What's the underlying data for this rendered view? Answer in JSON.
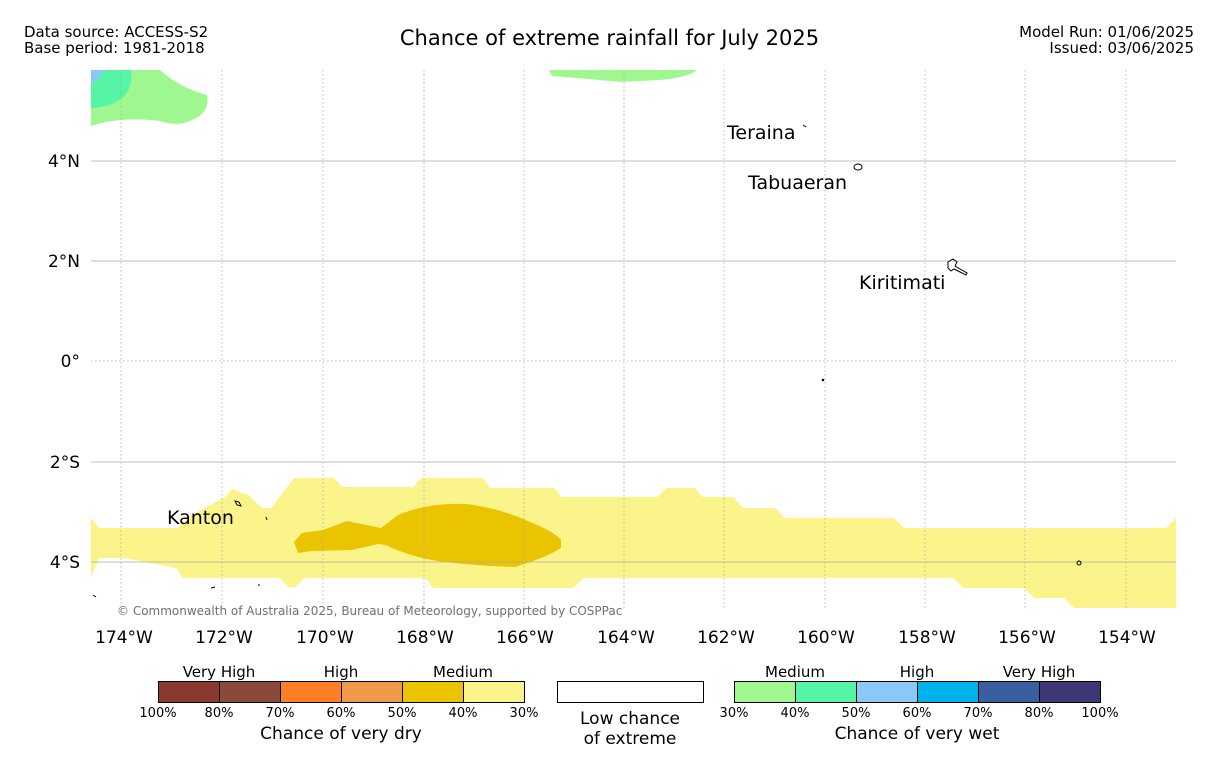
{
  "header": {
    "data_source": "Data source: ACCESS-S2",
    "base_period": "Base period: 1981-2018",
    "title": "Chance of extreme rainfall for July 2025",
    "model_run": "Model Run: 01/06/2025",
    "issued": "Issued: 03/06/2025"
  },
  "map": {
    "lon_ticks": [
      "174°W",
      "172°W",
      "170°W",
      "168°W",
      "166°W",
      "164°W",
      "162°W",
      "160°W",
      "158°W",
      "156°W",
      "154°W"
    ],
    "lat_ticks": [
      "4°N",
      "2°N",
      "0°",
      "2°S",
      "4°S"
    ],
    "places": [
      "Teraina",
      "Tabuaeran",
      "Kiritimati",
      "Kanton"
    ],
    "copyright": "© Commonwealth of Australia 2025, Bureau of Meteorology, supported by COSPPac"
  },
  "legend": {
    "dry": {
      "headings": [
        "Very High",
        "High",
        "Medium"
      ],
      "ticks": [
        "100%",
        "80%",
        "70%",
        "60%",
        "50%",
        "40%",
        "30%"
      ],
      "title": "Chance of very dry",
      "colors": [
        "#8b3a2f",
        "#8b4a39",
        "#fe7f25",
        "#ef9a48",
        "#ebc400",
        "#fbf48b"
      ]
    },
    "low": {
      "line1": "Low chance",
      "line2": "of extreme"
    },
    "wet": {
      "headings": [
        "Medium",
        "High",
        "Very High"
      ],
      "ticks": [
        "30%",
        "40%",
        "50%",
        "60%",
        "70%",
        "80%",
        "100%"
      ],
      "title": "Chance of very wet",
      "colors": [
        "#9ff88f",
        "#55f5a5",
        "#88c9f8",
        "#00b2ea",
        "#3a5f9e",
        "#3d3875"
      ]
    }
  }
}
